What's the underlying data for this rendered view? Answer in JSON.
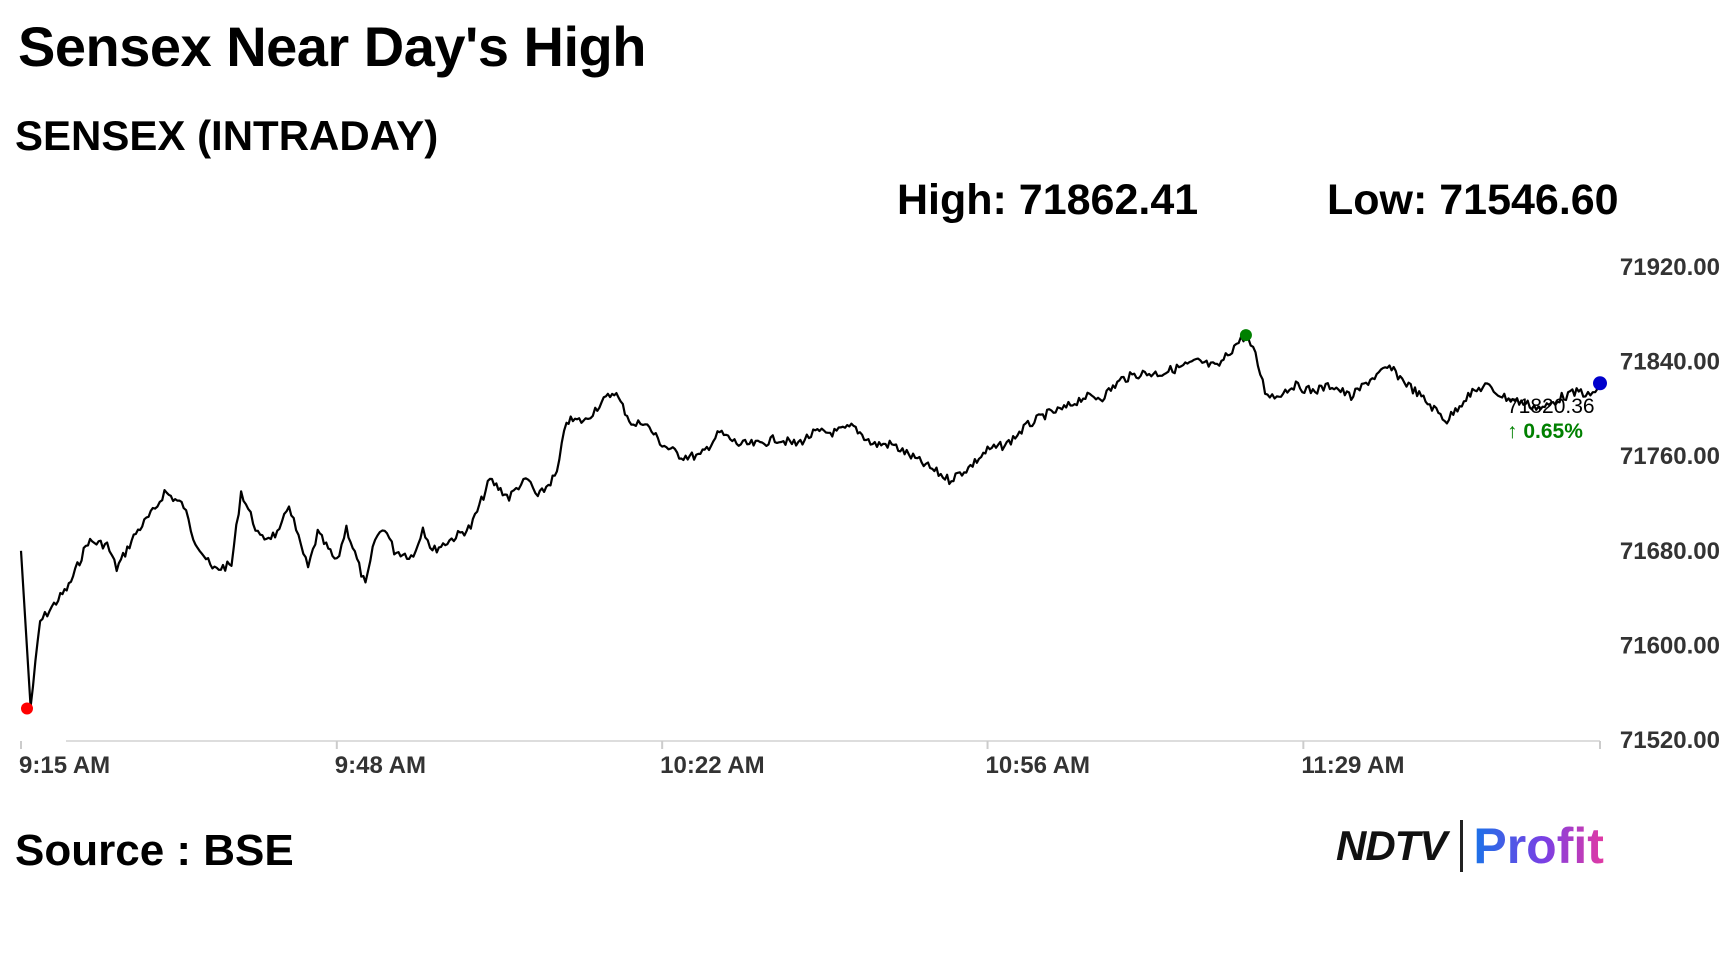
{
  "title": "Sensex Near Day's High",
  "subtitle": "SENSEX (INTRADAY)",
  "high_label": "High: 71862.41",
  "low_label": "Low: 71546.60",
  "source": "Source : BSE",
  "logo": {
    "left": "NDTV",
    "right": "Profit"
  },
  "colors": {
    "line": "#000000",
    "high_marker": "#008000",
    "low_marker": "#ff0000",
    "last_marker": "#0000cc",
    "change": "#008000",
    "grid": "#dddddd"
  },
  "chart_data": {
    "type": "line",
    "title": "SENSEX (INTRADAY)",
    "xlabel": "",
    "ylabel": "",
    "grid": false,
    "ylim": [
      71520,
      71920
    ],
    "xlim": [
      "9:15",
      "12:00"
    ],
    "y_ticks": [
      71520,
      71600,
      71680,
      71760,
      71840,
      71920
    ],
    "y_tick_labels": [
      "71520.00",
      "71600.00",
      "71680.00",
      "71760.00",
      "71840.00",
      "71920.00"
    ],
    "x_ticks": [
      "9:15",
      "9:48",
      "10:22",
      "10:56",
      "11:29"
    ],
    "x_tick_labels": [
      "9:15 AM",
      "9:48 AM",
      "10:22 AM",
      "10:56 AM",
      "11:29 AM"
    ],
    "last_value_label": "71820.36",
    "change_label": "↑ 0.65%",
    "high_point": {
      "x": "11:23",
      "y": 71862.41
    },
    "low_point": {
      "x": "9:15",
      "y": 71546.6
    },
    "series": [
      {
        "x": [
          "9:15",
          "9:16",
          "9:17",
          "9:18",
          "9:20",
          "9:22",
          "9:24",
          "9:25",
          "9:27",
          "9:29",
          "9:30",
          "9:32",
          "9:33",
          "9:35",
          "9:37",
          "9:38",
          "9:39",
          "9:40",
          "9:42",
          "9:43",
          "9:44",
          "9:45",
          "9:46",
          "9:48",
          "9:49",
          "9:51",
          "9:52",
          "9:53",
          "9:54",
          "9:56",
          "9:57",
          "9:58",
          "10:00",
          "10:02",
          "10:04",
          "10:06",
          "10:07",
          "10:08",
          "10:09",
          "10:11",
          "10:12",
          "10:14",
          "10:15",
          "10:17",
          "10:19",
          "10:20",
          "10:22",
          "10:24",
          "10:26",
          "10:28",
          "10:30",
          "10:32",
          "10:34",
          "10:36",
          "10:38",
          "10:40",
          "10:42",
          "10:44",
          "10:46",
          "10:48",
          "10:50",
          "10:52",
          "10:54",
          "10:56",
          "10:58",
          "11:00",
          "11:02",
          "11:04",
          "11:06",
          "11:08",
          "11:10",
          "11:12",
          "11:14",
          "11:16",
          "11:18",
          "11:20",
          "11:22",
          "11:23",
          "11:24",
          "11:25",
          "11:26",
          "11:28",
          "11:30",
          "11:32",
          "11:34",
          "11:36",
          "11:38",
          "11:40",
          "11:42",
          "11:44",
          "11:46",
          "11:48",
          "11:50",
          "11:52",
          "11:54",
          "11:56",
          "11:58",
          "11:59",
          "12:00"
        ],
        "values": [
          71680,
          71548,
          71620,
          71630,
          71650,
          71688,
          71685,
          71665,
          71695,
          71715,
          71730,
          71718,
          71692,
          71664,
          71668,
          71730,
          71710,
          71690,
          71695,
          71720,
          71690,
          71665,
          71695,
          71670,
          71700,
          71650,
          71690,
          71700,
          71680,
          71675,
          71700,
          71680,
          71690,
          71700,
          71740,
          71725,
          71735,
          71740,
          71725,
          71745,
          71790,
          71790,
          71800,
          71815,
          71785,
          71790,
          71770,
          71760,
          71760,
          71780,
          71770,
          71770,
          71775,
          71770,
          71780,
          71780,
          71785,
          71770,
          71770,
          71760,
          71750,
          71740,
          71750,
          71765,
          71770,
          71785,
          71795,
          71800,
          71810,
          71810,
          71825,
          71830,
          71830,
          71835,
          71840,
          71835,
          71855,
          71862,
          71845,
          71815,
          71810,
          71820,
          71815,
          71820,
          71810,
          71825,
          71835,
          71820,
          71805,
          71790,
          71810,
          71820,
          71810,
          71805,
          71800,
          71810,
          71815,
          71810,
          71820
        ]
      }
    ]
  }
}
